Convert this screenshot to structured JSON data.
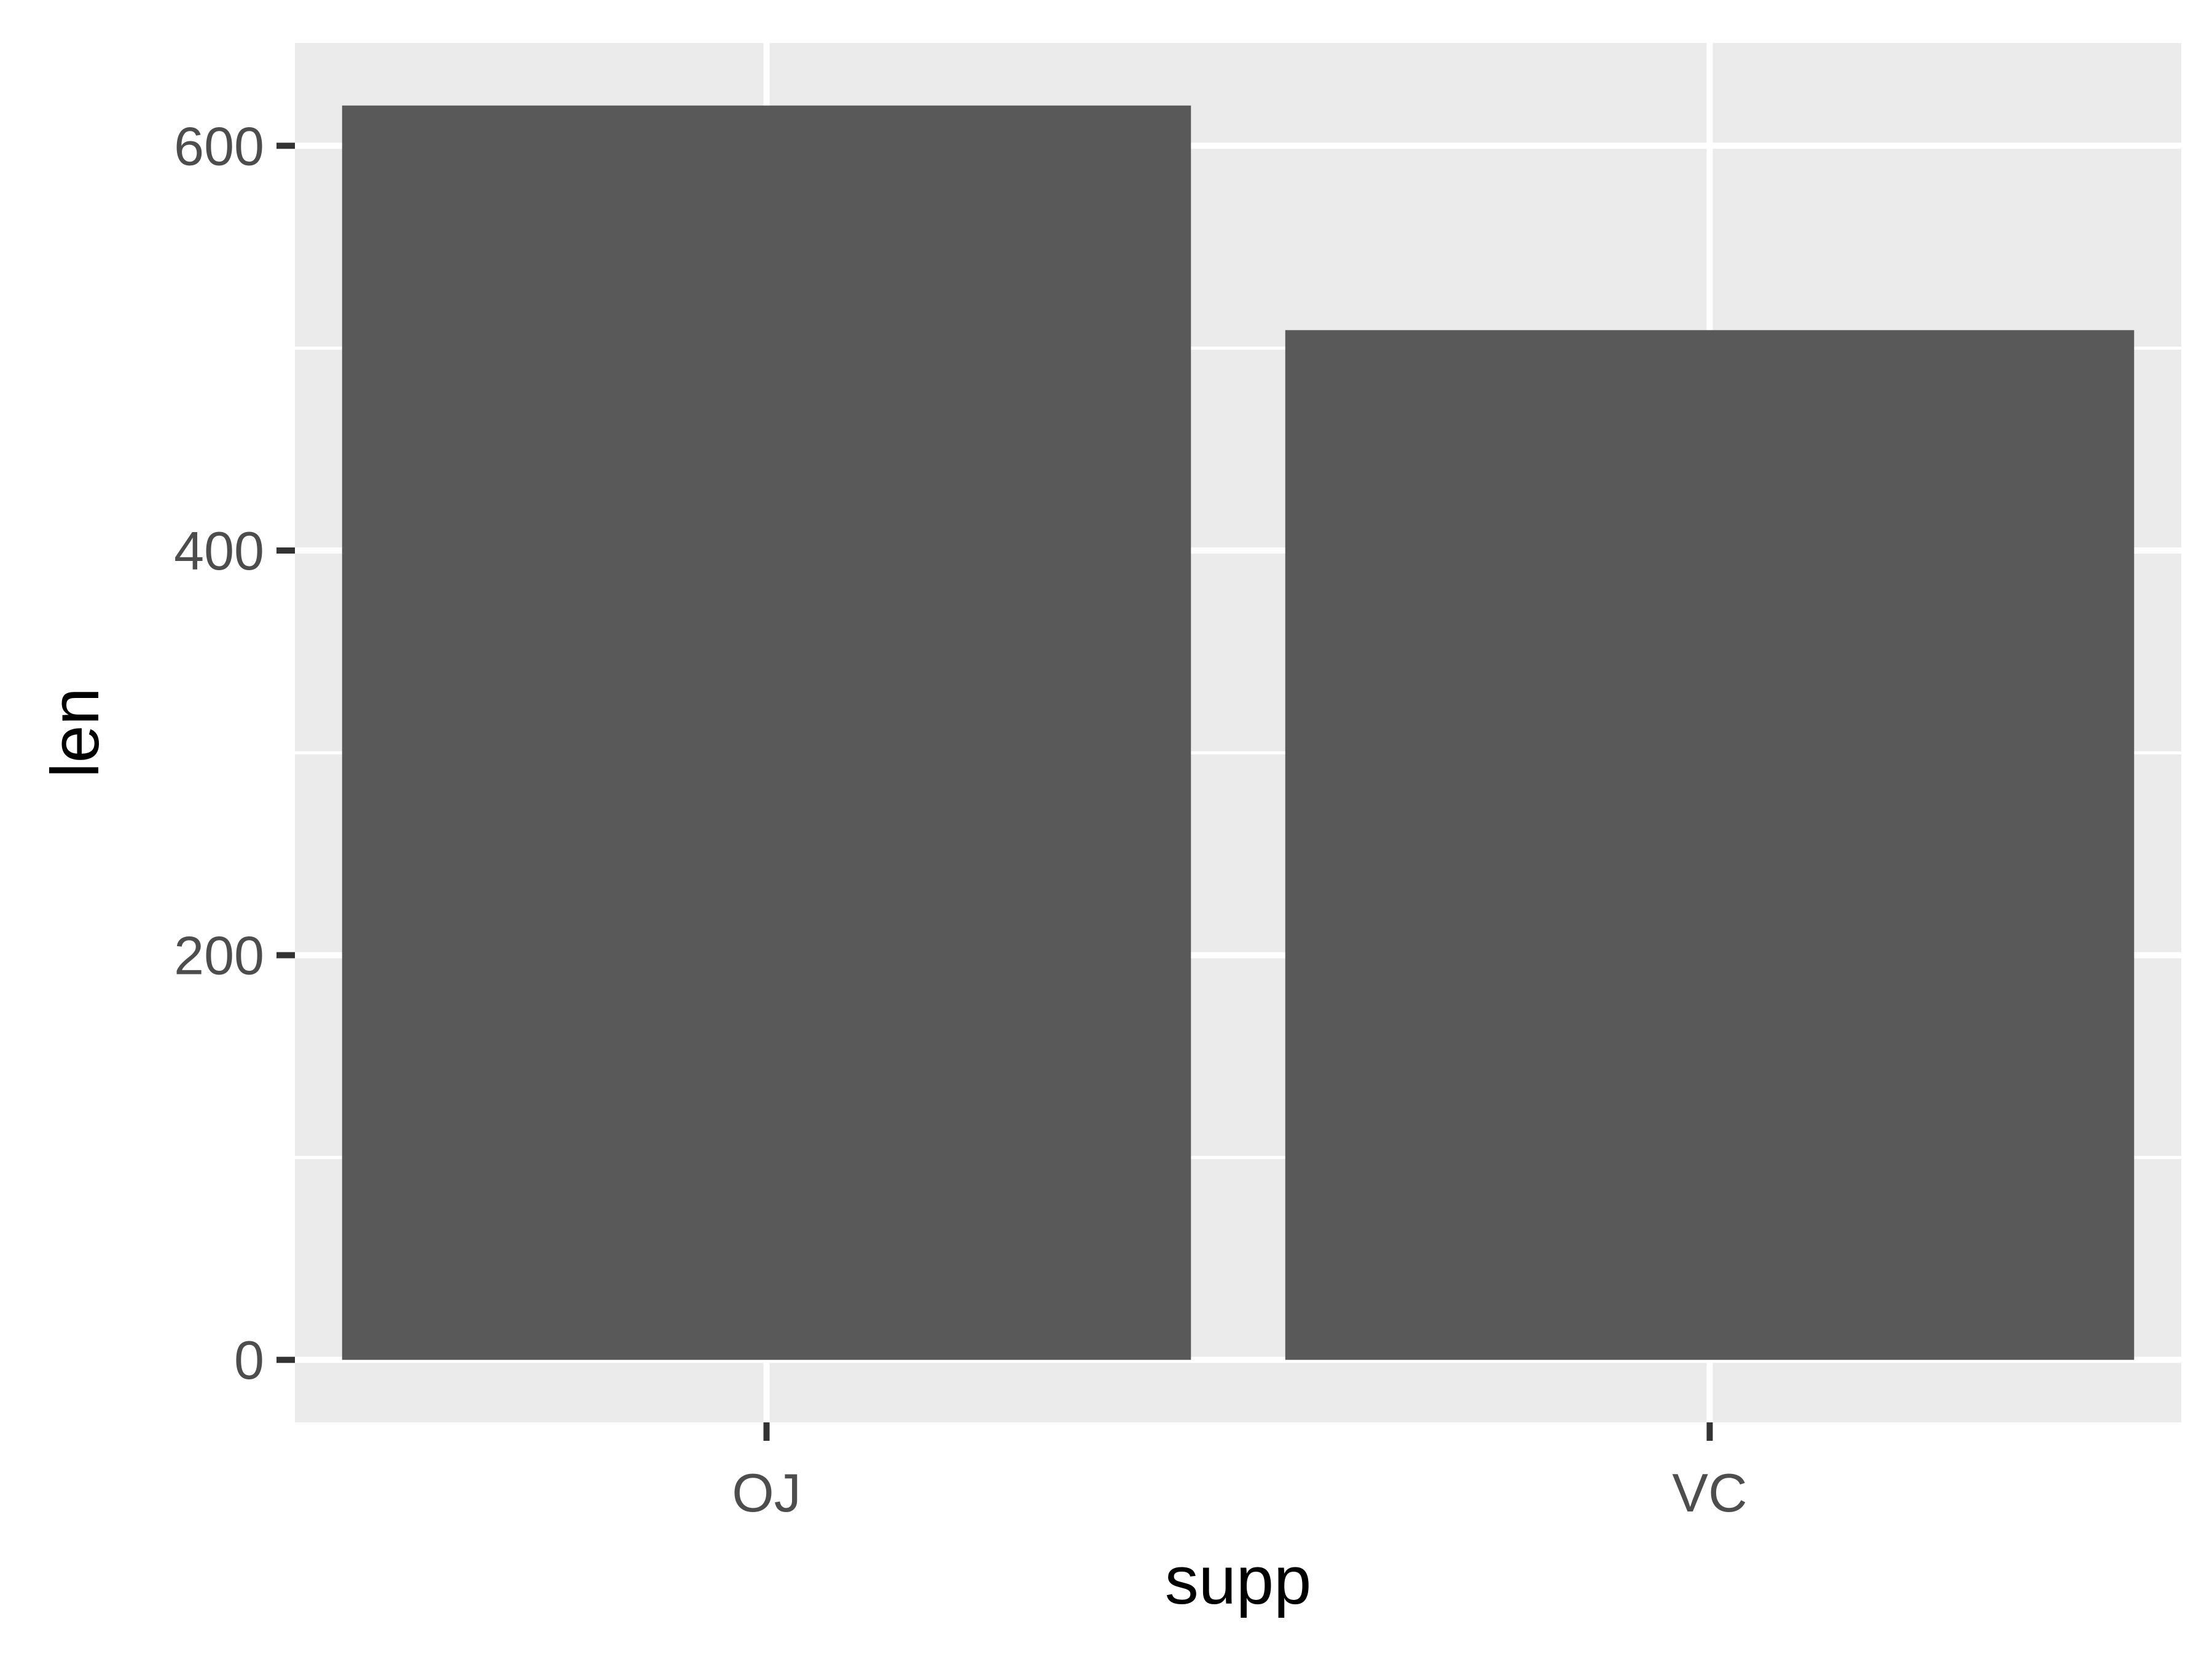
{
  "chart_data": {
    "type": "bar",
    "title": "",
    "xlabel": "supp",
    "ylabel": "len",
    "categories": [
      "OJ",
      "VC"
    ],
    "values": [
      619.9,
      508.9
    ],
    "ylim": [
      -30.9,
      650.8
    ],
    "yticks": [
      0,
      200,
      400,
      600
    ],
    "y_minor_gridlines": [
      100,
      300,
      500
    ],
    "grid": true,
    "legend": "none",
    "colors": {
      "panel_background": "#ebebeb",
      "gridline": "#ffffff",
      "bar_fill": "#595959",
      "tick_text": "#4d4d4d",
      "tick_mark": "#333333",
      "title_text": "#000000"
    }
  }
}
